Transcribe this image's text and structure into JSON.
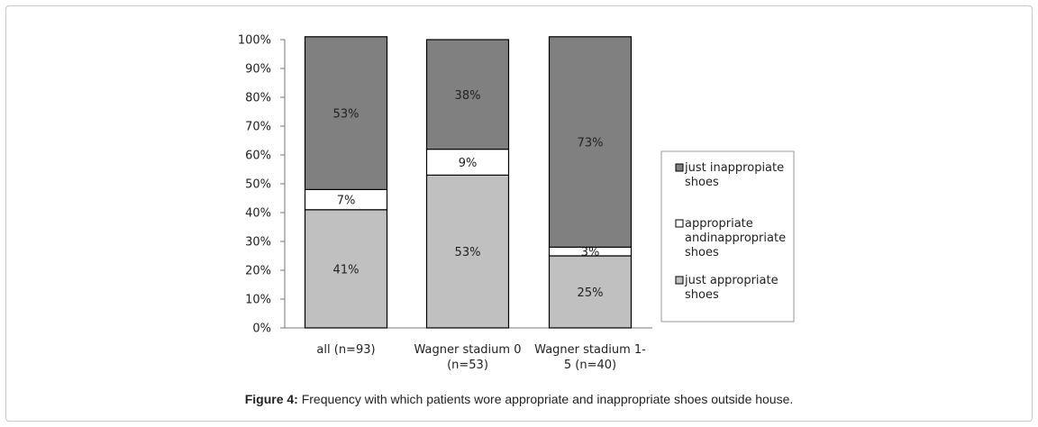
{
  "figure": {
    "label": "Figure 4:",
    "caption": " Frequency with which patients wore appropriate and inappropriate shoes outside house."
  },
  "chart_data": {
    "type": "bar",
    "stacked": true,
    "percent": true,
    "categories": [
      [
        "all (n=93)"
      ],
      [
        "Wagner stadium 0",
        "(n=53)"
      ],
      [
        "Wagner stadium 1-",
        "5 (n=40)"
      ]
    ],
    "series": [
      {
        "name": "just appropriate shoes",
        "legend_lines": [
          "just appropriate",
          "shoes"
        ],
        "color": "#c0c0c0",
        "values": [
          41,
          53,
          25
        ],
        "labels": [
          "41%",
          "53%",
          "25%"
        ]
      },
      {
        "name": "appropriate andinappropriate shoes",
        "legend_lines": [
          "appropriate",
          "andinappropriate",
          "shoes"
        ],
        "color": "#ffffff",
        "values": [
          7,
          9,
          3
        ],
        "labels": [
          "7%",
          "9%",
          "3%"
        ]
      },
      {
        "name": "just inappropiate shoes",
        "legend_lines": [
          "just inappropiate",
          "shoes"
        ],
        "color": "#808080",
        "values": [
          53,
          38,
          73
        ],
        "labels": [
          "53%",
          "38%",
          "73%"
        ]
      }
    ],
    "legend_order": [
      2,
      1,
      0
    ],
    "ylim": [
      0,
      100
    ],
    "yticks": [
      "0%",
      "10%",
      "20%",
      "30%",
      "40%",
      "50%",
      "60%",
      "70%",
      "80%",
      "90%",
      "100%"
    ],
    "xlabel": "",
    "ylabel": "",
    "grid": false,
    "legend_position": "right"
  }
}
